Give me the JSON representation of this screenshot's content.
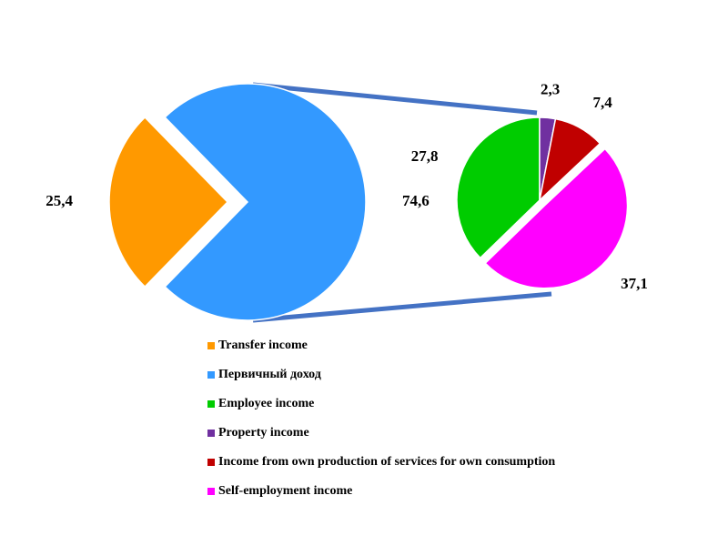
{
  "chart_data": [
    {
      "type": "pie",
      "categories": [
        "Transfer income",
        "Первичный доход"
      ],
      "values": [
        25.4,
        74.6
      ],
      "value_labels": [
        "25,4",
        "74,6"
      ],
      "colors": [
        "#ff9900",
        "#3399ff"
      ]
    },
    {
      "type": "pie",
      "categories": [
        "Employee income",
        "Property income",
        "Income from own production of services for own consumption",
        "Self-employment income"
      ],
      "values": [
        27.8,
        2.3,
        7.4,
        37.1
      ],
      "value_labels": [
        "27,8",
        "2,3",
        "7,4",
        "37,1"
      ],
      "colors": [
        "#00cc00",
        "#7030a0",
        "#c00000",
        "#ff00ff"
      ]
    }
  ]
}
